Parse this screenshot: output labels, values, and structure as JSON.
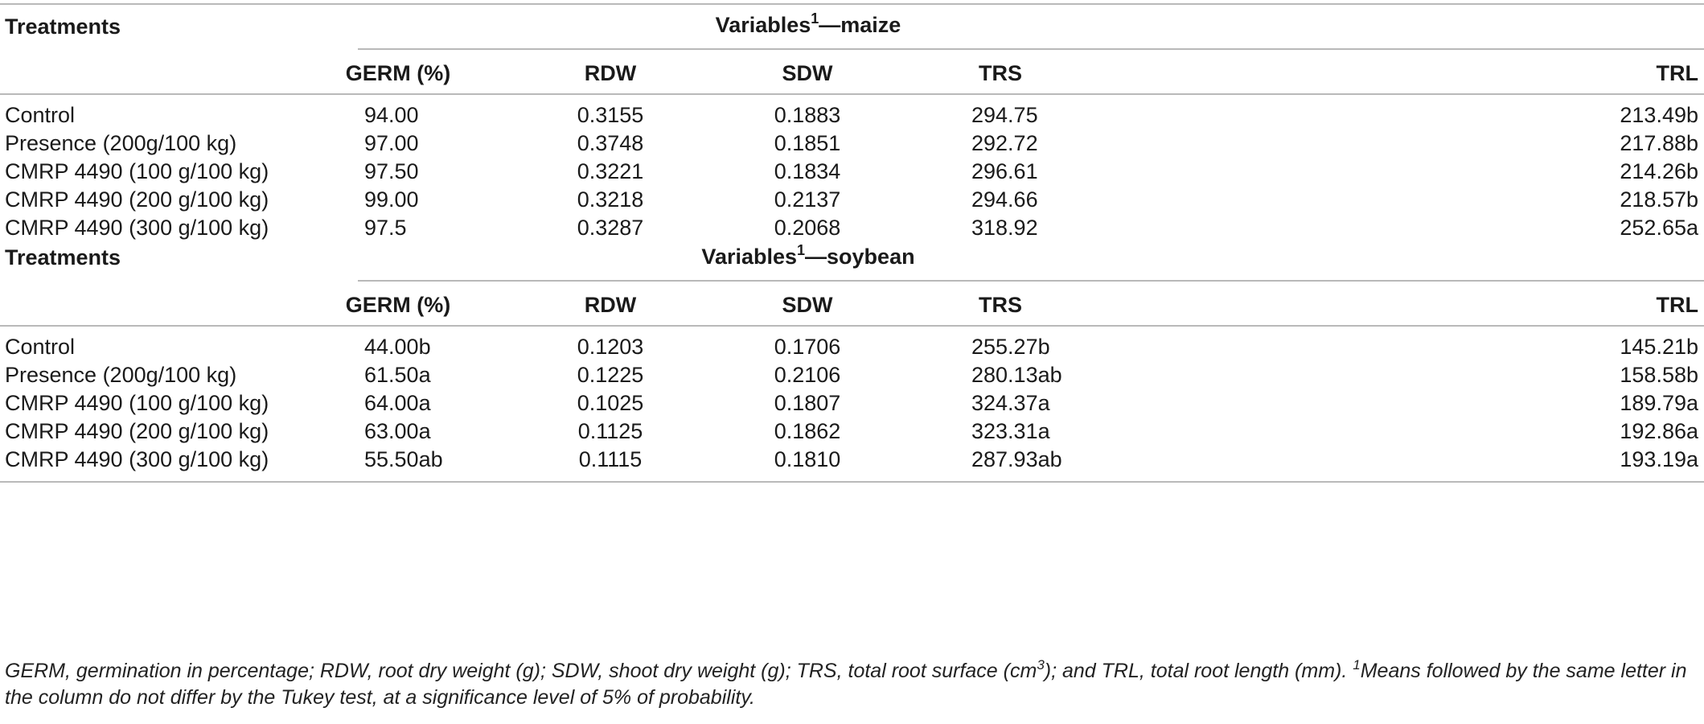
{
  "sections": [
    {
      "treatments_label": "Treatments",
      "variables_label": "Variables",
      "variables_sup": "1",
      "variables_suffix": "—maize",
      "columns": [
        "GERM (%)",
        "RDW",
        "SDW",
        "TRS",
        "TRL"
      ],
      "rows": [
        [
          "Control",
          "94.00",
          "0.3155",
          "0.1883",
          "294.75",
          "213.49b"
        ],
        [
          "Presence (200g/100 kg)",
          "97.00",
          "0.3748",
          "0.1851",
          "292.72",
          "217.88b"
        ],
        [
          "CMRP 4490 (100 g/100 kg)",
          "97.50",
          "0.3221",
          "0.1834",
          "296.61",
          "214.26b"
        ],
        [
          "CMRP 4490 (200 g/100 kg)",
          "99.00",
          "0.3218",
          "0.2137",
          "294.66",
          "218.57b"
        ],
        [
          "CMRP 4490 (300 g/100 kg)",
          "97.5",
          "0.3287",
          "0.2068",
          "318.92",
          "252.65a"
        ]
      ]
    },
    {
      "treatments_label": "Treatments",
      "variables_label": "Variables",
      "variables_sup": "1",
      "variables_suffix": "—soybean",
      "columns": [
        "GERM (%)",
        "RDW",
        "SDW",
        "TRS",
        "TRL"
      ],
      "rows": [
        [
          "Control",
          "44.00b",
          "0.1203",
          "0.1706",
          "255.27b",
          "145.21b"
        ],
        [
          "Presence (200g/100 kg)",
          "61.50a",
          "0.1225",
          "0.2106",
          "280.13ab",
          "158.58b"
        ],
        [
          "CMRP 4490 (100 g/100 kg)",
          "64.00a",
          "0.1025",
          "0.1807",
          "324.37a",
          "189.79a"
        ],
        [
          "CMRP 4490 (200 g/100 kg)",
          "63.00a",
          "0.1125",
          "0.1862",
          "323.31a",
          "192.86a"
        ],
        [
          "CMRP 4490 (300 g/100 kg)",
          "55.50ab",
          "0.1115",
          "0.1810",
          "287.93ab",
          "193.19a"
        ]
      ]
    }
  ],
  "footnote": {
    "part1": "GERM, germination in percentage; RDW, root dry weight (g); SDW, shoot dry weight (g); TRS, total root surface (cm",
    "sup1": "3",
    "part2": "); and TRL, total root length (mm). ",
    "sup2": "1",
    "part3": "Means followed by the same letter in the column do not differ by the Tukey test, at a significance level of 5% of probability."
  }
}
